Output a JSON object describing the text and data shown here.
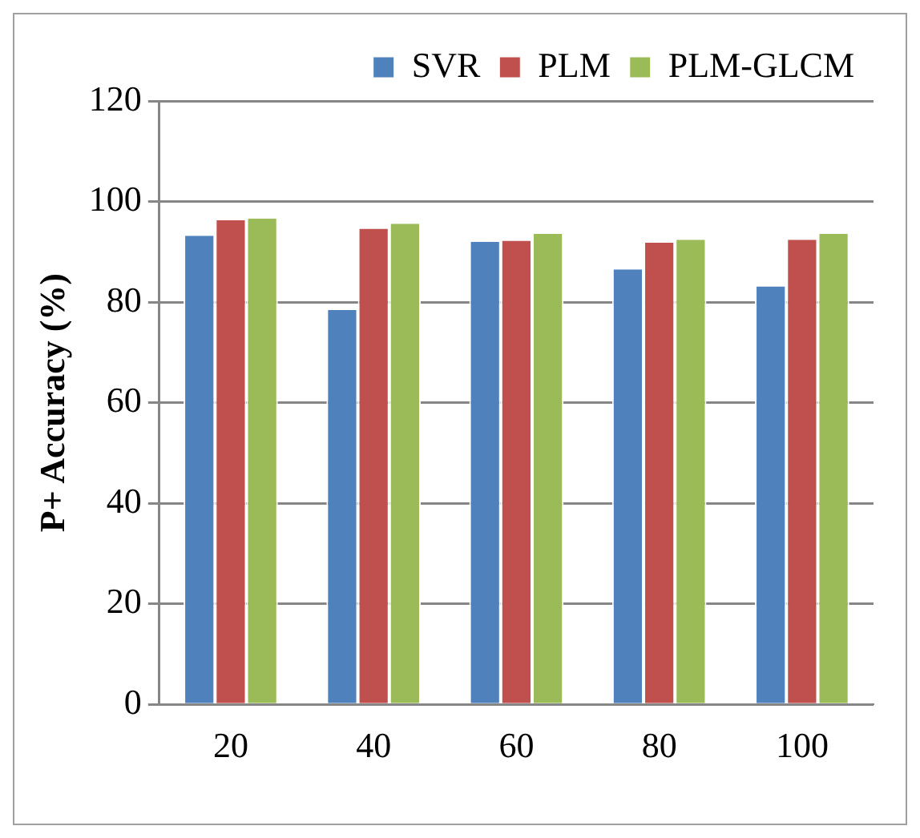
{
  "chart_data": {
    "type": "bar",
    "ylabel": "P+ Accuracy (%)",
    "categories": [
      "20",
      "40",
      "60",
      "80",
      "100"
    ],
    "series": [
      {
        "name": "SVR",
        "color": "#4f81bd",
        "values": [
          93.2,
          78.4,
          92.0,
          86.5,
          83.1
        ]
      },
      {
        "name": "PLM",
        "color": "#c0504d",
        "values": [
          96.3,
          94.6,
          92.2,
          91.8,
          92.4
        ]
      },
      {
        "name": "PLM-GLCM",
        "color": "#9bbb59",
        "values": [
          96.6,
          95.6,
          93.6,
          92.4,
          93.6
        ]
      }
    ],
    "ylim": [
      0,
      120
    ],
    "yticks": [
      0,
      20,
      40,
      60,
      80,
      100,
      120
    ],
    "grid": "y",
    "legend": "top right"
  }
}
